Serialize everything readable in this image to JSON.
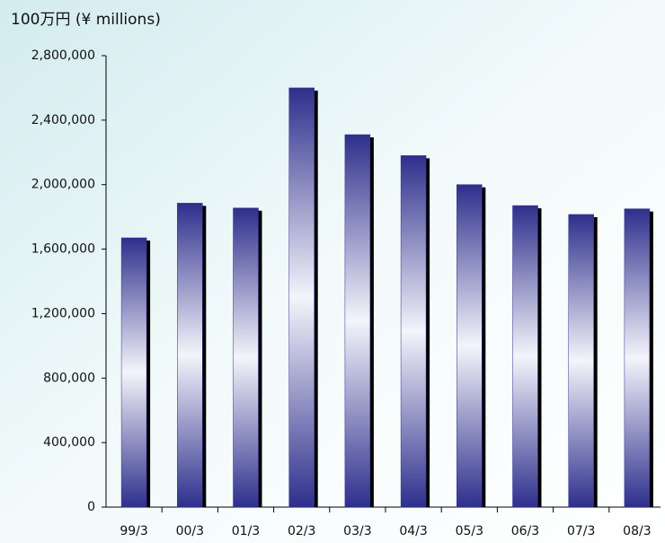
{
  "chart_data": {
    "type": "bar",
    "title": "100万円 (¥ millions)",
    "categories": [
      "99/3",
      "00/3",
      "01/3",
      "02/3",
      "03/3",
      "04/3",
      "05/3",
      "06/3",
      "07/3",
      "08/3"
    ],
    "values": [
      1670000,
      1885000,
      1855000,
      2600000,
      2310000,
      2180000,
      2000000,
      1870000,
      1815000,
      1850000
    ],
    "color": "#2e2f8c",
    "ylim": [
      0,
      2800000
    ],
    "yticks": [
      0,
      {
        "value": 400000,
        "label": "400,000"
      },
      {
        "value": 800000,
        "label": "800,000"
      },
      {
        "value": 1200000,
        "label": "1,200,000"
      },
      {
        "value": 1600000,
        "label": "1,600,000"
      },
      {
        "value": 2000000,
        "label": "2,000,000"
      },
      {
        "value": 2400000,
        "label": "2,400,000"
      },
      {
        "value": 2800000,
        "label": "2,800,000"
      }
    ],
    "grid": false
  }
}
